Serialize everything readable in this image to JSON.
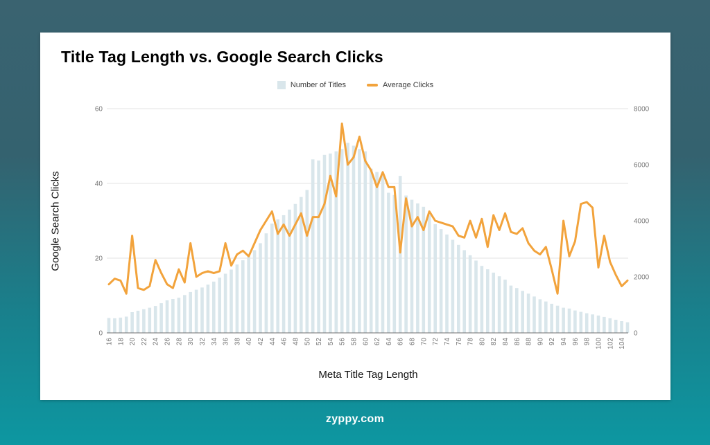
{
  "page": {
    "footer": "zyppy.com"
  },
  "card": {
    "title": "Title Tag Length vs. Google Search Clicks",
    "legend": {
      "titles_label": "Number of Titles",
      "clicks_label": "Average Clicks"
    },
    "y_left_title": "Google Search Clicks",
    "x_title": "Meta Title Tag Length"
  },
  "colors": {
    "bar_fill": "#D9E6EB",
    "line_stroke": "#F2A33C",
    "grid": "#E3E3E3",
    "baseline": "#6E6E6E",
    "tick_text": "#757575",
    "background_top": "#3A6370",
    "background_bottom": "#0D97A1",
    "card_background": "#FFFFFF"
  },
  "chart_data": {
    "type": "bar+line combo",
    "title": "Title Tag Length vs. Google Search Clicks",
    "xlabel": "Meta Title Tag Length",
    "ylabel_left": "Google Search Clicks",
    "legend_position": "top-center",
    "grid": "horizontal",
    "x": [
      16,
      17,
      18,
      19,
      20,
      21,
      22,
      23,
      24,
      25,
      26,
      27,
      28,
      29,
      30,
      31,
      32,
      33,
      34,
      35,
      36,
      37,
      38,
      39,
      40,
      41,
      42,
      43,
      44,
      45,
      46,
      47,
      48,
      49,
      50,
      51,
      52,
      53,
      54,
      55,
      56,
      57,
      58,
      59,
      60,
      61,
      62,
      63,
      64,
      65,
      66,
      67,
      68,
      69,
      70,
      71,
      72,
      73,
      74,
      75,
      76,
      77,
      78,
      79,
      80,
      81,
      82,
      83,
      84,
      85,
      86,
      87,
      88,
      89,
      90,
      91,
      92,
      93,
      94,
      95,
      96,
      97,
      98,
      99,
      100,
      101,
      102,
      103,
      104,
      105
    ],
    "x_axis": {
      "tick_min": 16,
      "tick_max": 104,
      "tick_step": 2
    },
    "left_axis": {
      "range": [
        0,
        60
      ],
      "ticks": [
        0,
        20,
        40,
        60
      ]
    },
    "right_axis": {
      "range": [
        0,
        8000
      ],
      "ticks": [
        0,
        2000,
        4000,
        6000,
        8000
      ]
    },
    "series": [
      {
        "name": "Number of Titles",
        "type": "bar",
        "axis": "right",
        "color": "#D9E6EB",
        "values": [
          530,
          520,
          545,
          580,
          740,
          790,
          845,
          900,
          960,
          1060,
          1160,
          1210,
          1255,
          1350,
          1460,
          1540,
          1620,
          1720,
          1830,
          1970,
          2110,
          2260,
          2440,
          2590,
          2730,
          2950,
          3200,
          3550,
          3900,
          4050,
          4200,
          4400,
          4600,
          4850,
          5100,
          6190,
          6150,
          6350,
          6400,
          6480,
          6560,
          6780,
          6680,
          6560,
          6480,
          5860,
          5740,
          5600,
          5000,
          4920,
          5600,
          4900,
          4750,
          4620,
          4500,
          4200,
          3880,
          3700,
          3510,
          3320,
          3140,
          2950,
          2770,
          2580,
          2390,
          2270,
          2150,
          2020,
          1900,
          1690,
          1600,
          1500,
          1400,
          1300,
          1200,
          1120,
          1040,
          970,
          900,
          870,
          800,
          750,
          700,
          660,
          620,
          570,
          520,
          470,
          420,
          380
        ]
      },
      {
        "name": "Average Clicks",
        "type": "line",
        "axis": "left",
        "color": "#F2A33C",
        "values": [
          13,
          14.5,
          14,
          10.5,
          26,
          12,
          11.5,
          12.5,
          19.5,
          16,
          13,
          12,
          17,
          13.5,
          24,
          15,
          16,
          16.5,
          16,
          16.5,
          24,
          18,
          21,
          22,
          20.5,
          24,
          27.5,
          30,
          32.5,
          26.5,
          29,
          26,
          29,
          32,
          26,
          31,
          31,
          34.5,
          42,
          36.5,
          56,
          45,
          47,
          52.5,
          46,
          43.5,
          39,
          43,
          39,
          39,
          21.5,
          36,
          28.5,
          31,
          27.5,
          32.5,
          30,
          29.5,
          29,
          28.5,
          26,
          25.5,
          30,
          25.5,
          30.5,
          23,
          31.5,
          27.5,
          32,
          27,
          26.5,
          28,
          24,
          22,
          21,
          23,
          17,
          10.5,
          30,
          20.5,
          24.5,
          34.5,
          35,
          33.5,
          17.5,
          26,
          19,
          15.5,
          12.5,
          14
        ]
      }
    ]
  }
}
